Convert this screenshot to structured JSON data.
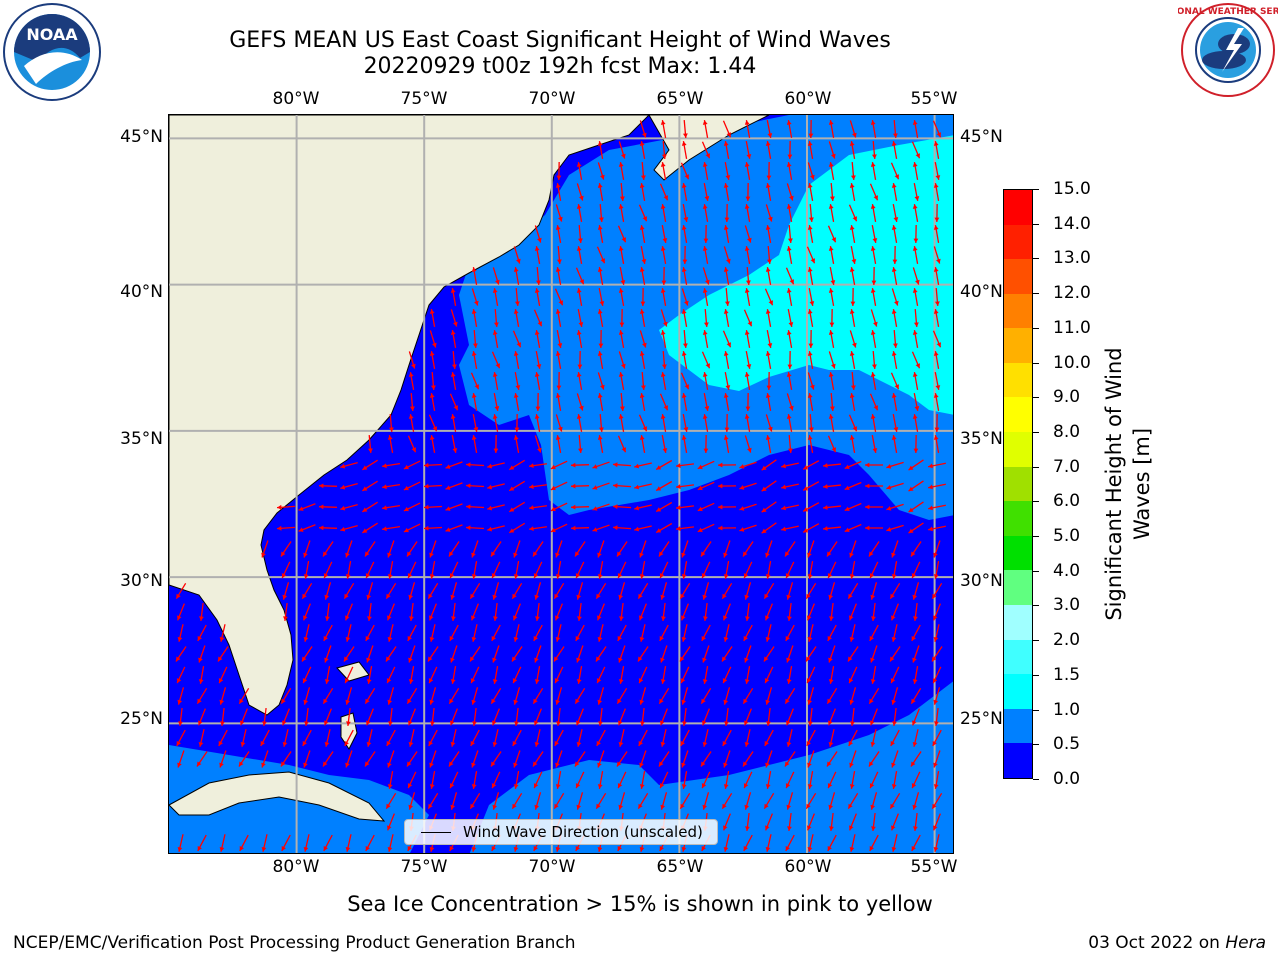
{
  "title": {
    "line1": "GEFS MEAN US East Coast Significant Height of Wind Waves",
    "line2": "20220929 t00z 192h fcst   Max: 1.44"
  },
  "logos": {
    "left": {
      "icon": "noaa-logo-icon",
      "text": "NOAA"
    },
    "right": {
      "icon": "nws-logo-icon",
      "text": "NATIONAL WEATHER SERVICE"
    }
  },
  "map": {
    "lon_ticks": [
      "80°W",
      "75°W",
      "70°W",
      "65°W",
      "60°W",
      "55°W"
    ],
    "lat_ticks": [
      "45°N",
      "40°N",
      "35°N",
      "30°N",
      "25°N"
    ],
    "lon_range": [
      -85,
      -54.2
    ],
    "lat_range": [
      20.5,
      45.8
    ],
    "legend_label": "Wind Wave Direction (unscaled)",
    "colors": {
      "land": "#efefdc",
      "ocean_0": "#0000ff",
      "ocean_05": "#0080ff",
      "ocean_10": "#00ffff",
      "arrows": "#ff0000",
      "grid": "#b0b0b0"
    }
  },
  "colorbar": {
    "title_line1": "Significant Height of Wind",
    "title_line2": "Waves [m]",
    "labels": [
      "0.0",
      "0.5",
      "1.0",
      "1.5",
      "2.0",
      "3.0",
      "4.0",
      "5.0",
      "6.0",
      "7.0",
      "8.0",
      "9.0",
      "10.0",
      "11.0",
      "12.0",
      "13.0",
      "14.0",
      "15.0"
    ],
    "colors": [
      "#0000ff",
      "#0080ff",
      "#00ffff",
      "#40ffff",
      "#a0ffff",
      "#60ff80",
      "#00e000",
      "#40e000",
      "#a0e000",
      "#e0ff00",
      "#ffff00",
      "#ffe000",
      "#ffb000",
      "#ff8000",
      "#ff5000",
      "#ff2000",
      "#ff0000"
    ]
  },
  "subcaption": "Sea Ice Concentration > 15% is shown in pink to yellow",
  "footer": {
    "left": "NCEP/EMC/Verification Post Processing Product Generation Branch",
    "date": "03 Oct 2022 on ",
    "host": "Hera"
  }
}
